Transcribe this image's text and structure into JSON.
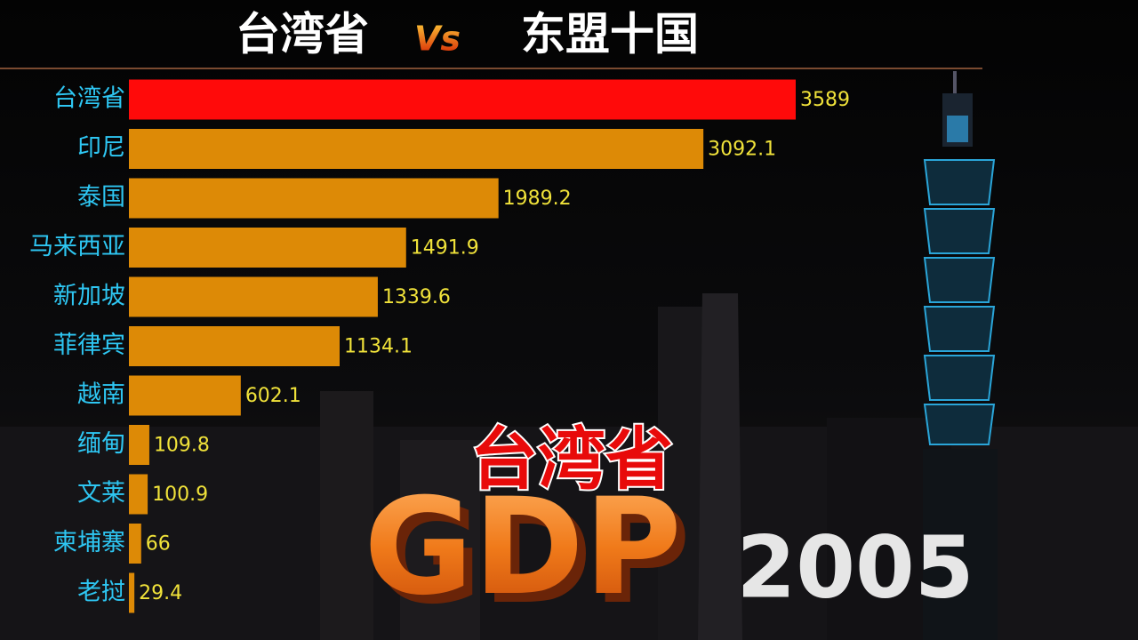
{
  "chart_data": {
    "type": "bar",
    "orientation": "horizontal",
    "title_left": "台湾省",
    "title_vs": "Vs",
    "title_right": "东盟十国",
    "categories": [
      "台湾省",
      "印尼",
      "泰国",
      "马来西亚",
      "新加坡",
      "菲律宾",
      "越南",
      "缅甸",
      "文莱",
      "柬埔寨",
      "老挝"
    ],
    "values": [
      3589,
      3092.1,
      1989.2,
      1491.9,
      1339.6,
      1134.1,
      602.1,
      109.8,
      100.9,
      66,
      29.4
    ],
    "colors": [
      "#ff0a0a",
      "#dd8a06",
      "#dd8a06",
      "#dd8a06",
      "#dd8a06",
      "#dd8a06",
      "#dd8a06",
      "#dd8a06",
      "#dd8a06",
      "#dd8a06",
      "#dd8a06"
    ],
    "label_color": "#2ec6f2",
    "value_label_color": "#f0e23a"
  },
  "overlay": {
    "region": "台湾省",
    "metric": "GDP",
    "year": "2005"
  }
}
